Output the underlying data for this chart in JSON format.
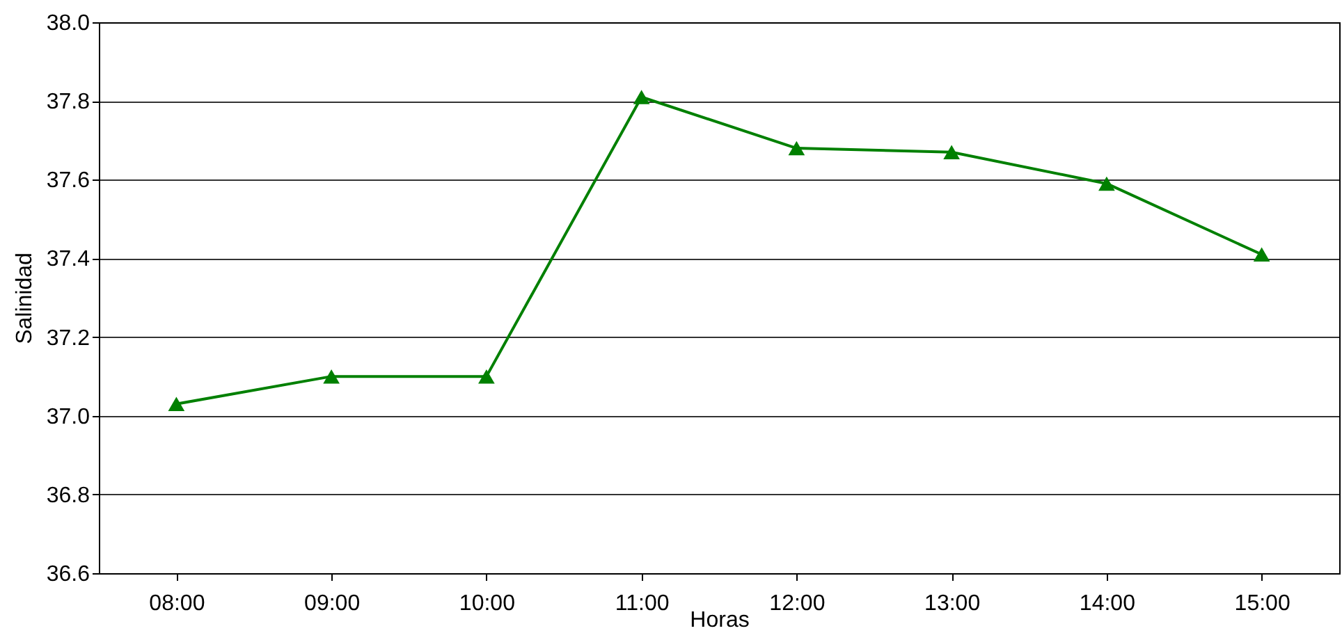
{
  "chart_data": {
    "type": "line",
    "xlabel": "Horas",
    "ylabel": "Salinidad",
    "categories": [
      "08:00",
      "09:00",
      "10:00",
      "11:00",
      "12:00",
      "13:00",
      "14:00",
      "15:00"
    ],
    "series": [
      {
        "color": "#008000",
        "values": [
          37.03,
          37.1,
          37.1,
          37.81,
          37.68,
          37.67,
          37.59,
          37.41
        ]
      }
    ],
    "ylim": [
      36.6,
      38.0
    ],
    "yticks": [
      {
        "value": 36.6,
        "label": "36.6"
      },
      {
        "value": 36.8,
        "label": "36.8"
      },
      {
        "value": 37.0,
        "label": "37.0"
      },
      {
        "value": 37.2,
        "label": "37.2"
      },
      {
        "value": 37.4,
        "label": "37.4"
      },
      {
        "value": 37.6,
        "label": "37.6"
      },
      {
        "value": 37.8,
        "label": "37.8"
      },
      {
        "value": 38.0,
        "label": "38.0"
      }
    ],
    "grid": "y",
    "marker": "triangle",
    "line_style": "solid"
  }
}
